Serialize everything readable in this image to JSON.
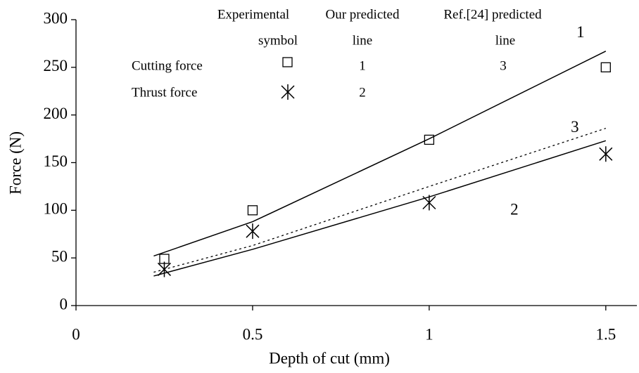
{
  "chart_data": {
    "type": "line",
    "xlabel": "Depth of cut (mm)",
    "ylabel": "Force (N)",
    "xlim": [
      0,
      1.6
    ],
    "ylim": [
      0,
      300
    ],
    "xticks": [
      0,
      0.5,
      1,
      1.5
    ],
    "yticks": [
      0,
      50,
      100,
      150,
      200,
      250,
      300
    ],
    "legend_headers": [
      [
        "Experimental",
        "symbol"
      ],
      [
        "Our predicted",
        "line"
      ],
      [
        "Ref.[24] predicted",
        "line"
      ]
    ],
    "series": [
      {
        "name": "Cutting force",
        "style": "square",
        "color": "#000000",
        "x": [
          0.25,
          0.5,
          1,
          1.5
        ],
        "values": [
          49,
          100,
          174,
          250
        ]
      },
      {
        "name": "Thrust force",
        "style": "asterisk",
        "color": "#000000",
        "x": [
          0.25,
          0.5,
          1,
          1.5
        ],
        "values": [
          38,
          78,
          108,
          159
        ]
      },
      {
        "name": "1",
        "style": "solid",
        "color": "#000000",
        "x": [
          0.22,
          0.5,
          1,
          1.5
        ],
        "values": [
          52,
          88,
          175,
          267
        ]
      },
      {
        "name": "2",
        "style": "solid",
        "color": "#000000",
        "x": [
          0.22,
          0.5,
          1,
          1.5
        ],
        "values": [
          31,
          59,
          114,
          173
        ]
      },
      {
        "name": "3",
        "style": "dotted",
        "color": "#000000",
        "x": [
          0.22,
          0.5,
          1,
          1.5
        ],
        "values": [
          35,
          63,
          125,
          186
        ]
      }
    ]
  }
}
